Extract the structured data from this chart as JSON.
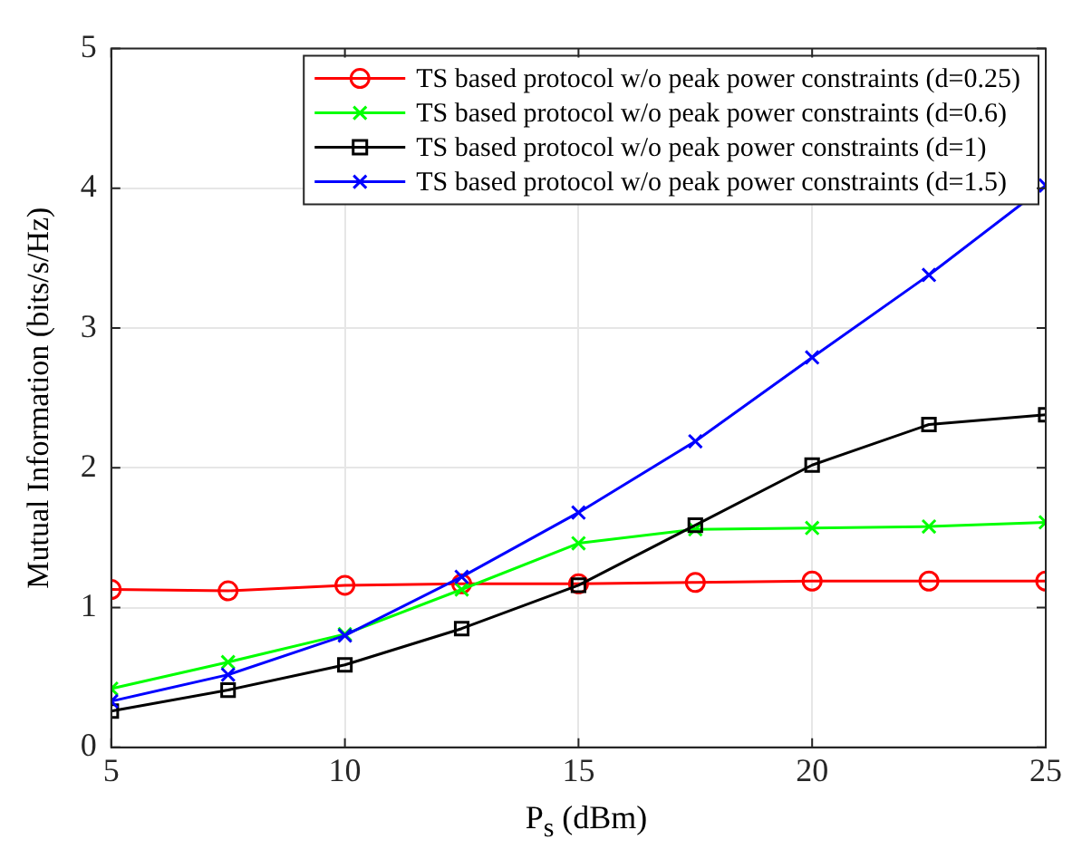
{
  "chart_data": {
    "type": "line",
    "xlabel": "P$_{s}$ (dBm)",
    "ylabel": "Mutual Information (bits/s/Hz)",
    "x": [
      5,
      7.5,
      10,
      12.5,
      15,
      17.5,
      20,
      22.5,
      25
    ],
    "series": [
      {
        "name": "TS based protocol w/o peak power constraints (d=0.25)",
        "color": "#ff0000",
        "marker": "circle",
        "values": [
          1.13,
          1.12,
          1.16,
          1.17,
          1.17,
          1.18,
          1.19,
          1.19,
          1.19
        ]
      },
      {
        "name": "TS based protocol w/o peak power constraints (d=0.6)",
        "color": "#00ff00",
        "marker": "cross",
        "values": [
          0.42,
          0.61,
          0.81,
          1.13,
          1.46,
          1.56,
          1.57,
          1.58,
          1.61
        ]
      },
      {
        "name": "TS based protocol w/o peak power constraints (d=1)",
        "color": "#000000",
        "marker": "square",
        "values": [
          0.26,
          0.41,
          0.59,
          0.85,
          1.16,
          1.59,
          2.02,
          2.31,
          2.38
        ]
      },
      {
        "name": "TS based protocol w/o peak power constraints (d=1.5)",
        "color": "#0000ff",
        "marker": "cross",
        "values": [
          0.33,
          0.52,
          0.8,
          1.22,
          1.68,
          2.19,
          2.79,
          3.38,
          4.02
        ]
      }
    ],
    "xlim": [
      5,
      25
    ],
    "xticks": [
      5,
      10,
      15,
      20,
      25
    ],
    "ylim": [
      0,
      5
    ],
    "yticks": [
      0,
      1,
      2,
      3,
      4,
      5
    ],
    "grid": true,
    "legend": "top right",
    "line_style": "solid"
  }
}
